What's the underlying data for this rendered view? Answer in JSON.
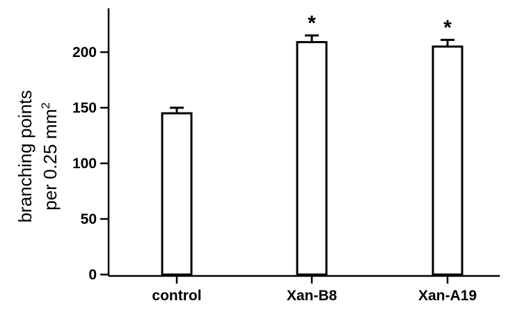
{
  "chart_data": {
    "type": "bar",
    "categories": [
      "control",
      "Xan-B8",
      "Xan-A19"
    ],
    "values": [
      145,
      209,
      205
    ],
    "errors": [
      5,
      6,
      6
    ],
    "annotations": [
      "",
      "*",
      "*"
    ],
    "ylabel_line1": "branching points",
    "ylabel_line2_prefix": "per 0.25 mm",
    "ylabel_superscript": "2",
    "ylim": [
      0,
      230
    ],
    "yticks": [
      0,
      50,
      100,
      150,
      200
    ],
    "ytick_labels": [
      "0",
      "50",
      "100",
      "150",
      "200"
    ],
    "bar_fill": "#ffffff",
    "bar_stroke": "#000000",
    "grid": false,
    "legend": "none"
  }
}
